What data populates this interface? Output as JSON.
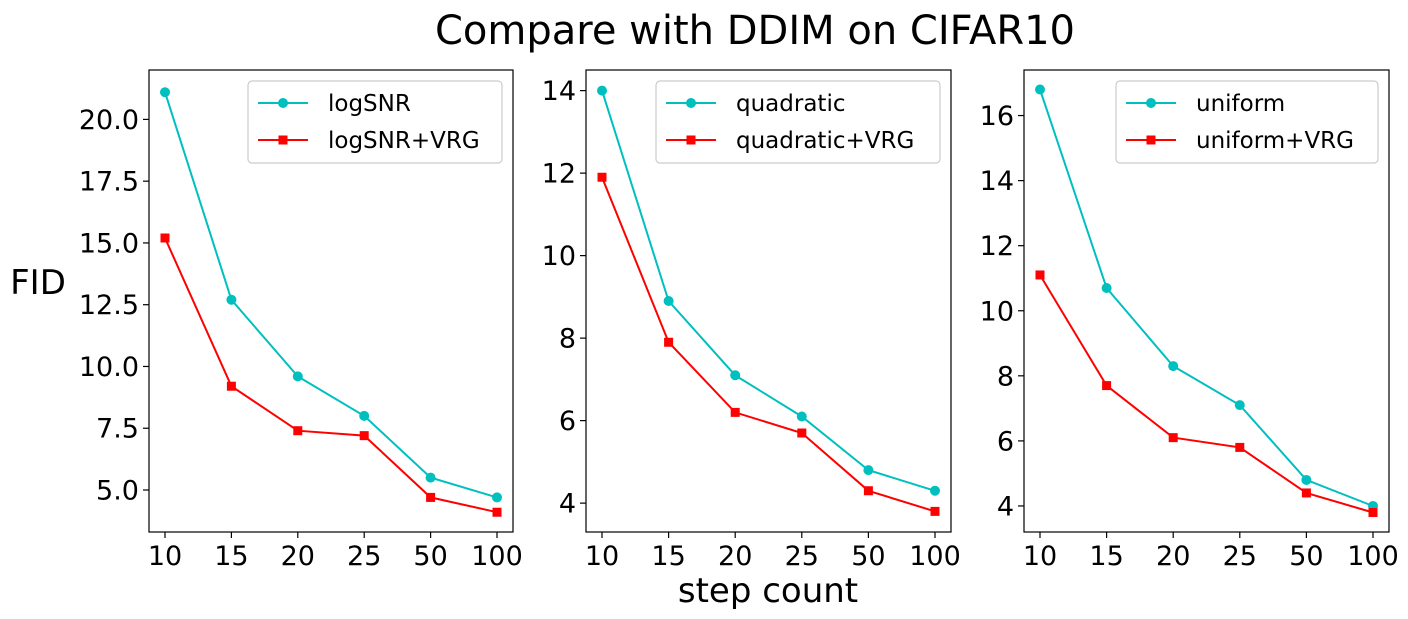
{
  "title": "Compare with DDIM on CIFAR10",
  "ylabel": "FID",
  "xlabel": "step count",
  "colors": {
    "base": "#00bfbf",
    "vrg": "#ff0000"
  },
  "chart_data": [
    {
      "type": "line",
      "categories": [
        "10",
        "15",
        "20",
        "25",
        "50",
        "100"
      ],
      "ylim": [
        3.3,
        22.0
      ],
      "yticks": [
        5.0,
        7.5,
        10.0,
        12.5,
        15.0,
        17.5,
        20.0
      ],
      "ytick_labels": [
        "5.0",
        "7.5",
        "10.0",
        "12.5",
        "15.0",
        "17.5",
        "20.0"
      ],
      "legend": "top-right",
      "series": [
        {
          "name": "logSNR",
          "marker": "circle",
          "values": [
            21.1,
            12.7,
            9.6,
            8.0,
            5.5,
            4.7
          ]
        },
        {
          "name": "logSNR+VRG",
          "marker": "square",
          "values": [
            15.2,
            9.2,
            7.4,
            7.2,
            4.7,
            4.1
          ]
        }
      ]
    },
    {
      "type": "line",
      "categories": [
        "10",
        "15",
        "20",
        "25",
        "50",
        "100"
      ],
      "ylim": [
        3.3,
        14.5
      ],
      "yticks": [
        4,
        6,
        8,
        10,
        12,
        14
      ],
      "ytick_labels": [
        "4",
        "6",
        "8",
        "10",
        "12",
        "14"
      ],
      "legend": "top-right",
      "series": [
        {
          "name": "quadratic",
          "marker": "circle",
          "values": [
            14.0,
            8.9,
            7.1,
            6.1,
            4.8,
            4.3
          ]
        },
        {
          "name": "quadratic+VRG",
          "marker": "square",
          "values": [
            11.9,
            7.9,
            6.2,
            5.7,
            4.3,
            3.8
          ]
        }
      ]
    },
    {
      "type": "line",
      "categories": [
        "10",
        "15",
        "20",
        "25",
        "50",
        "100"
      ],
      "ylim": [
        3.2,
        17.4
      ],
      "yticks": [
        4,
        6,
        8,
        10,
        12,
        14,
        16
      ],
      "ytick_labels": [
        "4",
        "6",
        "8",
        "10",
        "12",
        "14",
        "16"
      ],
      "legend": "top-right",
      "series": [
        {
          "name": "uniform",
          "marker": "circle",
          "values": [
            16.8,
            10.7,
            8.3,
            7.1,
            4.8,
            4.0
          ]
        },
        {
          "name": "uniform+VRG",
          "marker": "square",
          "values": [
            11.1,
            7.7,
            6.1,
            5.8,
            4.4,
            3.8
          ]
        }
      ]
    }
  ]
}
